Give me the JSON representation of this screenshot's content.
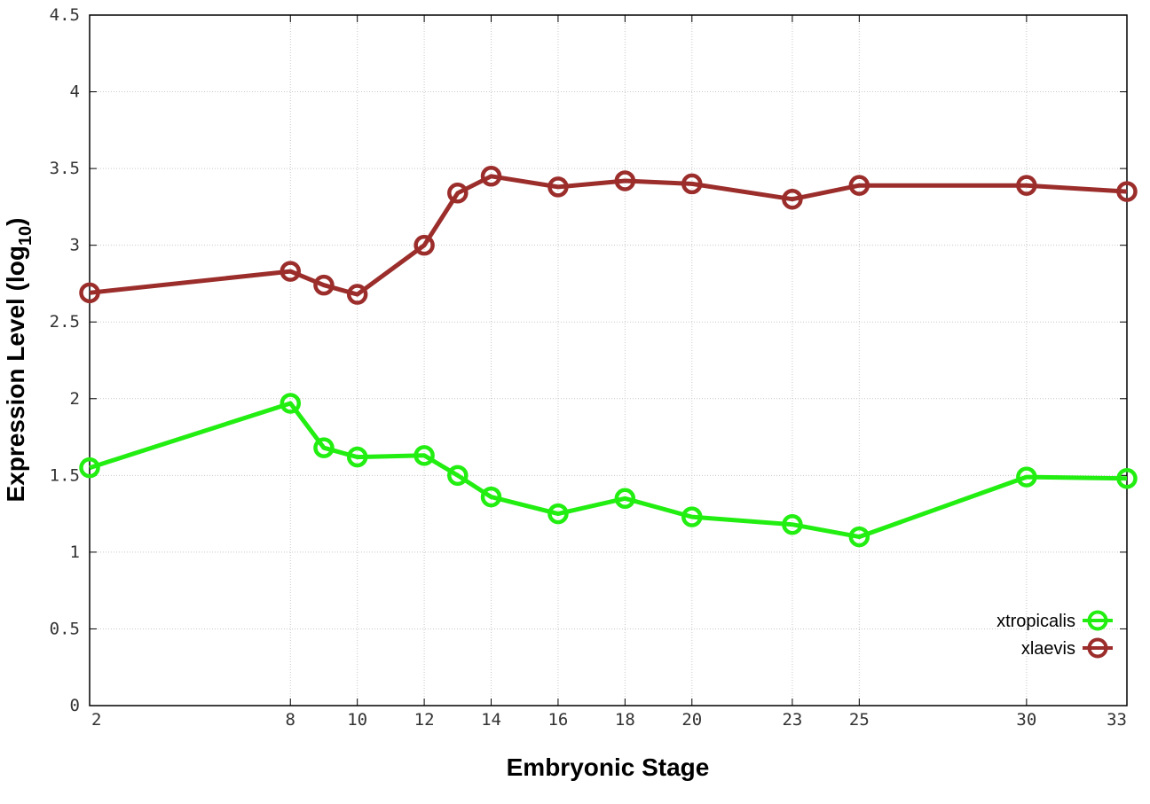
{
  "chart_data": {
    "type": "line",
    "title": "",
    "xlabel": "Embryonic Stage",
    "ylabel_main": "Expression Level (log",
    "ylabel_sub": "10",
    "ylabel_close": ")",
    "x_ticks": [
      {
        "value": 2,
        "label": "2"
      },
      {
        "value": 8,
        "label": "8"
      },
      {
        "value": 10,
        "label": "10"
      },
      {
        "value": 12,
        "label": "12"
      },
      {
        "value": 14,
        "label": "14"
      },
      {
        "value": 16,
        "label": "16"
      },
      {
        "value": 18,
        "label": "18"
      },
      {
        "value": 20,
        "label": "20"
      },
      {
        "value": 23,
        "label": "23"
      },
      {
        "value": 25,
        "label": "25"
      },
      {
        "value": 30,
        "label": "30"
      },
      {
        "value": 33,
        "label": "33"
      }
    ],
    "y_ticks": [
      {
        "value": 0,
        "label": "0"
      },
      {
        "value": 0.5,
        "label": "0.5"
      },
      {
        "value": 1,
        "label": "1"
      },
      {
        "value": 1.5,
        "label": "1.5"
      },
      {
        "value": 2,
        "label": "2"
      },
      {
        "value": 2.5,
        "label": "2.5"
      },
      {
        "value": 3,
        "label": "3"
      },
      {
        "value": 3.5,
        "label": "3.5"
      },
      {
        "value": 4,
        "label": "4"
      },
      {
        "value": 4.5,
        "label": "4.5"
      }
    ],
    "xlim": [
      2,
      33
    ],
    "ylim": [
      0,
      4.5
    ],
    "grid": true,
    "legend_position": "bottom-right",
    "series": [
      {
        "name": "xtropicalis",
        "color": "#22ee11",
        "marker": "open-circle",
        "points": [
          {
            "x": 2,
            "y": 1.55
          },
          {
            "x": 8,
            "y": 1.97
          },
          {
            "x": 9,
            "y": 1.68
          },
          {
            "x": 10,
            "y": 1.62
          },
          {
            "x": 12,
            "y": 1.63
          },
          {
            "x": 13,
            "y": 1.5
          },
          {
            "x": 14,
            "y": 1.36
          },
          {
            "x": 16,
            "y": 1.25
          },
          {
            "x": 18,
            "y": 1.35
          },
          {
            "x": 20,
            "y": 1.23
          },
          {
            "x": 23,
            "y": 1.18
          },
          {
            "x": 25,
            "y": 1.1
          },
          {
            "x": 30,
            "y": 1.49
          },
          {
            "x": 33,
            "y": 1.48
          }
        ]
      },
      {
        "name": "xlaevis",
        "color": "#9b2d2b",
        "marker": "open-circle",
        "points": [
          {
            "x": 2,
            "y": 2.69
          },
          {
            "x": 8,
            "y": 2.83
          },
          {
            "x": 9,
            "y": 2.74
          },
          {
            "x": 10,
            "y": 2.68
          },
          {
            "x": 12,
            "y": 3.0
          },
          {
            "x": 13,
            "y": 3.34
          },
          {
            "x": 14,
            "y": 3.45
          },
          {
            "x": 16,
            "y": 3.38
          },
          {
            "x": 18,
            "y": 3.42
          },
          {
            "x": 20,
            "y": 3.4
          },
          {
            "x": 23,
            "y": 3.3
          },
          {
            "x": 25,
            "y": 3.39
          },
          {
            "x": 30,
            "y": 3.39
          },
          {
            "x": 33,
            "y": 3.35
          }
        ]
      }
    ]
  }
}
